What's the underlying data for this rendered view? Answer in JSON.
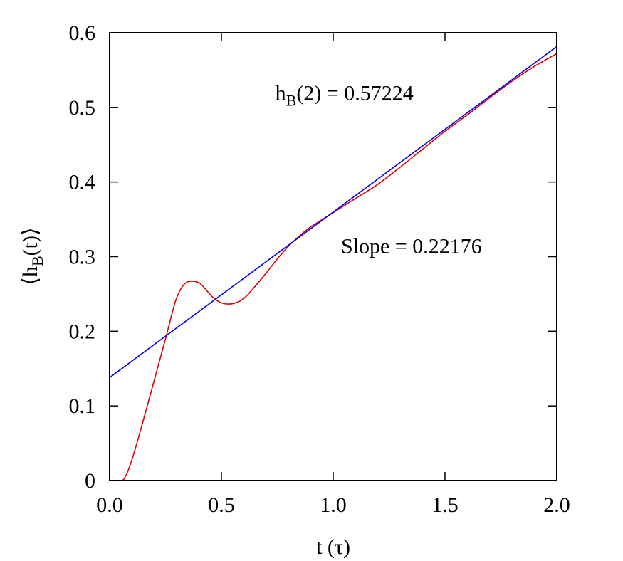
{
  "chart_data": {
    "type": "line",
    "xlabel": "t (τ)",
    "ylabel": {
      "open": "⟨h",
      "sub": "B",
      "rest": "(t)⟩"
    },
    "xlim": [
      0.0,
      2.0
    ],
    "ylim": [
      0.0,
      0.6
    ],
    "x_ticks": [
      "0.0",
      "0.5",
      "1.0",
      "1.5",
      "2.0"
    ],
    "y_ticks": [
      "0",
      "0.1",
      "0.2",
      "0.3",
      "0.4",
      "0.5",
      "0.6"
    ],
    "grid": false,
    "legend": "none",
    "annotations": [
      {
        "pre": "h",
        "sub": "B",
        "post": "(2) = 0.57224",
        "x": 1.05,
        "y": 0.51
      },
      {
        "pre": "Slope = 0.22176",
        "sub": "",
        "post": "",
        "x": 1.35,
        "y": 0.305
      }
    ],
    "series": [
      {
        "color": "#e00000",
        "style": "curve",
        "x": [
          0.0,
          0.05,
          0.07,
          0.1,
          0.15,
          0.2,
          0.25,
          0.28,
          0.3,
          0.33,
          0.36,
          0.4,
          0.43,
          0.46,
          0.5,
          0.55,
          0.6,
          0.65,
          0.7,
          0.75,
          0.8,
          0.85,
          0.9,
          1.0,
          1.1,
          1.2,
          1.3,
          1.4,
          1.5,
          1.6,
          1.7,
          1.8,
          1.9,
          2.0
        ],
        "y": [
          0.0,
          0.0,
          0.005,
          0.028,
          0.08,
          0.135,
          0.19,
          0.225,
          0.245,
          0.262,
          0.267,
          0.265,
          0.256,
          0.246,
          0.238,
          0.237,
          0.244,
          0.26,
          0.278,
          0.297,
          0.314,
          0.328,
          0.34,
          0.359,
          0.378,
          0.397,
          0.42,
          0.444,
          0.468,
          0.49,
          0.513,
          0.535,
          0.555,
          0.572
        ]
      },
      {
        "color": "#0000ee",
        "style": "line",
        "x": [
          0.0,
          2.0
        ],
        "y": [
          0.138,
          0.5815
        ]
      }
    ]
  }
}
